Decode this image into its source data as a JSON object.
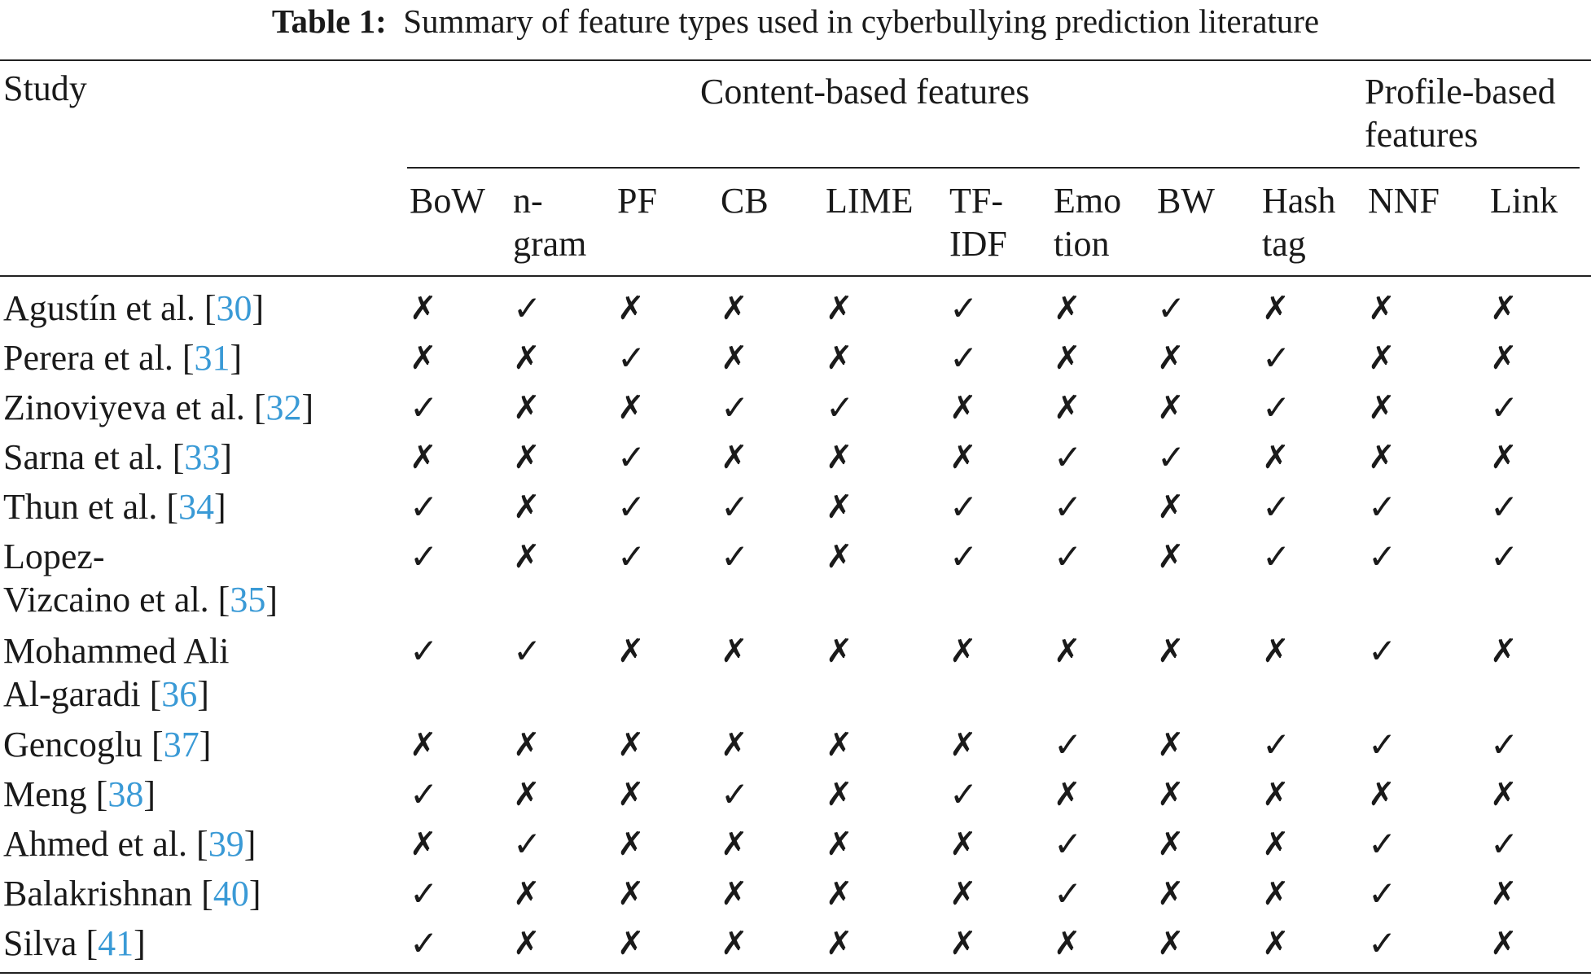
{
  "caption": {
    "label": "Table 1:",
    "text": "Summary of feature types used in cyberbullying prediction literature"
  },
  "header": {
    "study": "Study",
    "content_group": "Content-based features",
    "profile_group_line1": "Profile-based",
    "profile_group_line2": "features",
    "columns": [
      {
        "line1": "BoW",
        "line2": ""
      },
      {
        "line1": "n-",
        "line2": "gram"
      },
      {
        "line1": "PF",
        "line2": ""
      },
      {
        "line1": "CB",
        "line2": ""
      },
      {
        "line1": "LIME",
        "line2": ""
      },
      {
        "line1": "TF-",
        "line2": "IDF"
      },
      {
        "line1": "Emo",
        "line2": "tion"
      },
      {
        "line1": "BW",
        "line2": ""
      },
      {
        "line1": "Hash",
        "line2": "tag"
      },
      {
        "line1": "NNF",
        "line2": ""
      },
      {
        "line1": "Link",
        "line2": ""
      }
    ]
  },
  "symbols": {
    "yes": "✓",
    "no": "✗"
  },
  "rows": [
    {
      "study_line1": "Agustín et al. [",
      "ref": "30",
      "close": "]",
      "study_line2": "",
      "ref2": "",
      "close2": "",
      "marks": [
        0,
        1,
        0,
        0,
        0,
        1,
        0,
        1,
        0,
        0,
        0
      ]
    },
    {
      "study_line1": "Perera et al. [",
      "ref": "31",
      "close": "]",
      "study_line2": "",
      "ref2": "",
      "close2": "",
      "marks": [
        0,
        0,
        1,
        0,
        0,
        1,
        0,
        0,
        1,
        0,
        0
      ]
    },
    {
      "study_line1": "Zinoviyeva et al. [",
      "ref": "32",
      "close": "]",
      "study_line2": "",
      "ref2": "",
      "close2": "",
      "marks": [
        1,
        0,
        0,
        1,
        1,
        0,
        0,
        0,
        1,
        0,
        1
      ]
    },
    {
      "study_line1": "Sarna et al. [",
      "ref": "33",
      "close": "]",
      "study_line2": "",
      "ref2": "",
      "close2": "",
      "marks": [
        0,
        0,
        1,
        0,
        0,
        0,
        1,
        1,
        0,
        0,
        0
      ]
    },
    {
      "study_line1": "Thun et al. [",
      "ref": "34",
      "close": "]",
      "study_line2": "",
      "ref2": "",
      "close2": "",
      "marks": [
        1,
        0,
        1,
        1,
        0,
        1,
        1,
        0,
        1,
        1,
        1
      ]
    },
    {
      "study_line1": "Lopez-",
      "ref": "",
      "close": "",
      "study_line2": "Vizcaino et al. [",
      "ref2": "35",
      "close2": "]",
      "marks": [
        1,
        0,
        1,
        1,
        0,
        1,
        1,
        0,
        1,
        1,
        1
      ]
    },
    {
      "study_line1": "Mohammed Ali",
      "ref": "",
      "close": "",
      "study_line2": "Al-garadi [",
      "ref2": "36",
      "close2": "]",
      "marks": [
        1,
        1,
        0,
        0,
        0,
        0,
        0,
        0,
        0,
        1,
        0
      ]
    },
    {
      "study_line1": "Gencoglu [",
      "ref": "37",
      "close": "]",
      "study_line2": "",
      "ref2": "",
      "close2": "",
      "marks": [
        0,
        0,
        0,
        0,
        0,
        0,
        1,
        0,
        1,
        1,
        1
      ]
    },
    {
      "study_line1": "Meng [",
      "ref": "38",
      "close": "]",
      "study_line2": "",
      "ref2": "",
      "close2": "",
      "marks": [
        1,
        0,
        0,
        1,
        0,
        1,
        0,
        0,
        0,
        0,
        0
      ]
    },
    {
      "study_line1": "Ahmed et al. [",
      "ref": "39",
      "close": "]",
      "study_line2": "",
      "ref2": "",
      "close2": "",
      "marks": [
        0,
        1,
        0,
        0,
        0,
        0,
        1,
        0,
        0,
        1,
        1
      ]
    },
    {
      "study_line1": "Balakrishnan [",
      "ref": "40",
      "close": "]",
      "study_line2": "",
      "ref2": "",
      "close2": "",
      "marks": [
        1,
        0,
        0,
        0,
        0,
        0,
        1,
        0,
        0,
        1,
        0
      ]
    },
    {
      "study_line1": "Silva [",
      "ref": "41",
      "close": "]",
      "study_line2": "",
      "ref2": "",
      "close2": "",
      "marks": [
        1,
        0,
        0,
        0,
        0,
        0,
        0,
        0,
        0,
        1,
        0
      ]
    }
  ]
}
